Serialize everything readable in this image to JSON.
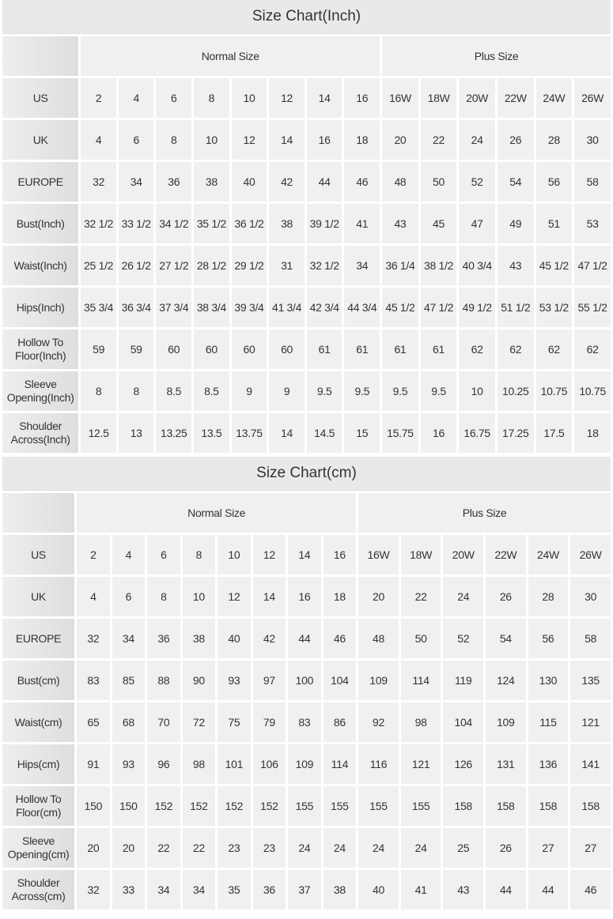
{
  "charts": [
    {
      "title": "Size Chart(Inch)",
      "groups": [
        "Normal Size",
        "Plus Size"
      ],
      "rows": [
        {
          "label": "US",
          "values": [
            "2",
            "4",
            "6",
            "8",
            "10",
            "12",
            "14",
            "16",
            "16W",
            "18W",
            "20W",
            "22W",
            "24W",
            "26W"
          ]
        },
        {
          "label": "UK",
          "values": [
            "4",
            "6",
            "8",
            "10",
            "12",
            "14",
            "16",
            "18",
            "20",
            "22",
            "24",
            "26",
            "28",
            "30"
          ]
        },
        {
          "label": "EUROPE",
          "values": [
            "32",
            "34",
            "36",
            "38",
            "40",
            "42",
            "44",
            "46",
            "48",
            "50",
            "52",
            "54",
            "56",
            "58"
          ]
        },
        {
          "label": "Bust(Inch)",
          "values": [
            "32 1/2",
            "33 1/2",
            "34 1/2",
            "35 1/2",
            "36 1/2",
            "38",
            "39 1/2",
            "41",
            "43",
            "45",
            "47",
            "49",
            "51",
            "53"
          ]
        },
        {
          "label": "Waist(Inch)",
          "values": [
            "25 1/2",
            "26 1/2",
            "27 1/2",
            "28 1/2",
            "29 1/2",
            "31",
            "32 1/2",
            "34",
            "36 1/4",
            "38 1/2",
            "40 3/4",
            "43",
            "45 1/2",
            "47 1/2"
          ]
        },
        {
          "label": "Hips(Inch)",
          "values": [
            "35 3/4",
            "36 3/4",
            "37 3/4",
            "38 3/4",
            "39 3/4",
            "41 3/4",
            "42 3/4",
            "44 3/4",
            "45 1/2",
            "47 1/2",
            "49 1/2",
            "51 1/2",
            "53 1/2",
            "55 1/2"
          ]
        },
        {
          "label": "Hollow To Floor(Inch)",
          "values": [
            "59",
            "59",
            "60",
            "60",
            "60",
            "60",
            "61",
            "61",
            "61",
            "61",
            "62",
            "62",
            "62",
            "62"
          ]
        },
        {
          "label": "Sleeve Opening(Inch)",
          "values": [
            "8",
            "8",
            "8.5",
            "8.5",
            "9",
            "9",
            "9.5",
            "9.5",
            "9.5",
            "9.5",
            "10",
            "10.25",
            "10.75",
            "10.75"
          ]
        },
        {
          "label": "Shoulder Across(Inch)",
          "values": [
            "12.5",
            "13",
            "13.25",
            "13.5",
            "13.75",
            "14",
            "14.5",
            "15",
            "15.75",
            "16",
            "16.75",
            "17.25",
            "17.5",
            "18"
          ]
        }
      ]
    },
    {
      "title": "Size Chart(cm)",
      "groups": [
        "Normal Size",
        "Plus Size"
      ],
      "rows": [
        {
          "label": "US",
          "values": [
            "2",
            "4",
            "6",
            "8",
            "10",
            "12",
            "14",
            "16",
            "16W",
            "18W",
            "20W",
            "22W",
            "24W",
            "26W"
          ]
        },
        {
          "label": "UK",
          "values": [
            "4",
            "6",
            "8",
            "10",
            "12",
            "14",
            "16",
            "18",
            "20",
            "22",
            "24",
            "26",
            "28",
            "30"
          ]
        },
        {
          "label": "EUROPE",
          "values": [
            "32",
            "34",
            "36",
            "38",
            "40",
            "42",
            "44",
            "46",
            "48",
            "50",
            "52",
            "54",
            "56",
            "58"
          ]
        },
        {
          "label": "Bust(cm)",
          "values": [
            "83",
            "85",
            "88",
            "90",
            "93",
            "97",
            "100",
            "104",
            "109",
            "114",
            "119",
            "124",
            "130",
            "135"
          ]
        },
        {
          "label": "Waist(cm)",
          "values": [
            "65",
            "68",
            "70",
            "72",
            "75",
            "79",
            "83",
            "86",
            "92",
            "98",
            "104",
            "109",
            "115",
            "121"
          ]
        },
        {
          "label": "Hips(cm)",
          "values": [
            "91",
            "93",
            "96",
            "98",
            "101",
            "106",
            "109",
            "114",
            "116",
            "121",
            "126",
            "131",
            "136",
            "141"
          ]
        },
        {
          "label": "Hollow To Floor(cm)",
          "values": [
            "150",
            "150",
            "152",
            "152",
            "152",
            "152",
            "155",
            "155",
            "155",
            "155",
            "158",
            "158",
            "158",
            "158"
          ]
        },
        {
          "label": "Sleeve Opening(cm)",
          "values": [
            "20",
            "20",
            "22",
            "22",
            "23",
            "23",
            "24",
            "24",
            "24",
            "24",
            "25",
            "26",
            "27",
            "27"
          ]
        },
        {
          "label": "Shoulder Across(cm)",
          "values": [
            "32",
            "33",
            "34",
            "34",
            "35",
            "36",
            "37",
            "38",
            "40",
            "41",
            "43",
            "44",
            "44",
            "46"
          ]
        }
      ]
    }
  ]
}
